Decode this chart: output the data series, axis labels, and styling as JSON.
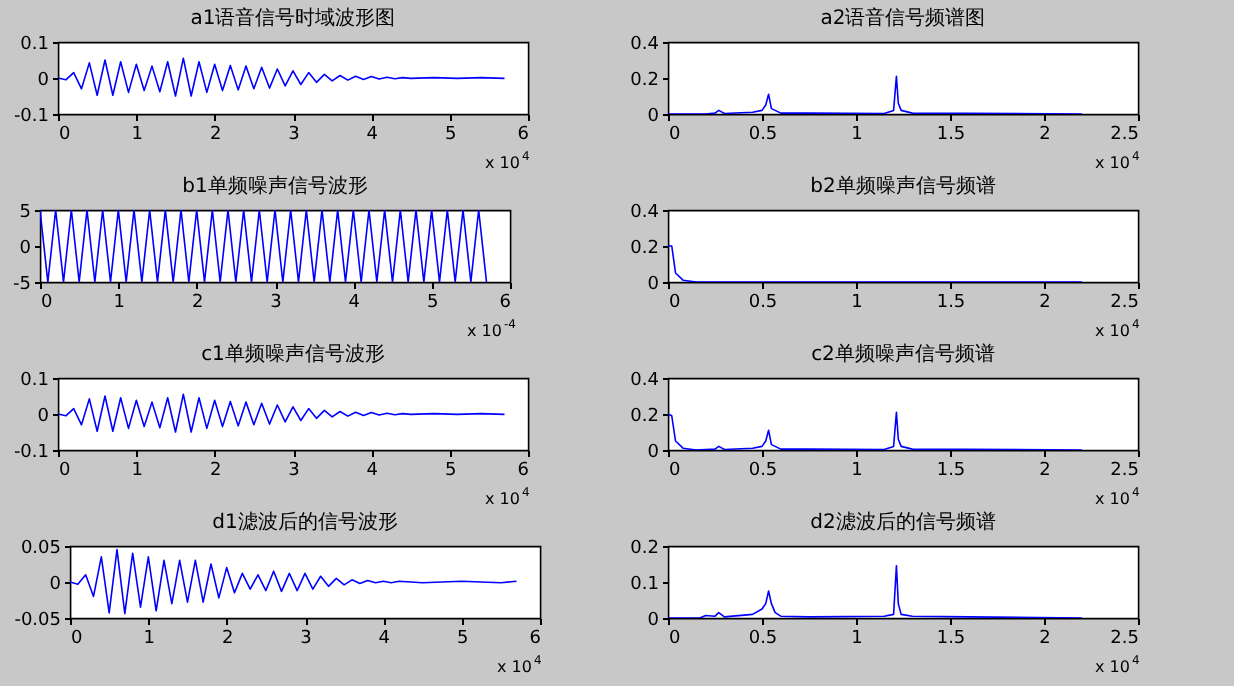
{
  "chart_data": [
    {
      "type": "line",
      "title": "a1语音信号时域波形图",
      "xlim": [
        0,
        6
      ],
      "xticks": [
        0,
        1,
        2,
        3,
        4,
        5,
        6
      ],
      "ylim": [
        -0.1,
        0.1
      ],
      "yticks": [
        -0.1,
        0,
        0.1
      ],
      "annotations": [
        "x 10$^{4}$"
      ],
      "series": [
        {
          "color": "#0000ff",
          "x": [
            0,
            0.1,
            0.2,
            0.3,
            0.4,
            0.5,
            0.6,
            0.7,
            0.8,
            0.9,
            1.0,
            1.1,
            1.2,
            1.3,
            1.4,
            1.5,
            1.6,
            1.7,
            1.8,
            1.9,
            2.0,
            2.1,
            2.2,
            2.3,
            2.4,
            2.5,
            2.6,
            2.7,
            2.8,
            2.9,
            3.0,
            3.1,
            3.2,
            3.3,
            3.4,
            3.5,
            3.6,
            3.7,
            3.8,
            3.9,
            4.0,
            4.1,
            4.2,
            4.3,
            4.4,
            4.5,
            4.8,
            5.1,
            5.4,
            5.7
          ],
          "values": [
            0,
            -0.005,
            0.015,
            -0.03,
            0.042,
            -0.048,
            0.05,
            -0.048,
            0.045,
            -0.04,
            0.038,
            -0.035,
            0.033,
            -0.038,
            0.045,
            -0.05,
            0.055,
            -0.05,
            0.045,
            -0.04,
            0.038,
            -0.035,
            0.035,
            -0.033,
            0.033,
            -0.03,
            0.03,
            -0.028,
            0.025,
            -0.022,
            0.02,
            -0.018,
            0.015,
            -0.012,
            0.01,
            -0.008,
            0.007,
            -0.006,
            0.005,
            -0.004,
            0.004,
            -0.003,
            0.002,
            -0.002,
            0.001,
            -0.001,
            0.001,
            -0.001,
            0.001,
            -0.001
          ]
        }
      ]
    },
    {
      "type": "line",
      "title": "a2语音信号频谱图",
      "xlim": [
        0,
        2.5
      ],
      "xticks": [
        0,
        0.5,
        1,
        1.5,
        2,
        2.5
      ],
      "ylim": [
        0,
        0.4
      ],
      "yticks": [
        0,
        0.2,
        0.4
      ],
      "annotations": [
        "x 10$^{4}$"
      ],
      "series": [
        {
          "color": "#0000ff",
          "x": [
            0,
            0.2,
            0.25,
            0.27,
            0.3,
            0.45,
            0.5,
            0.52,
            0.535,
            0.55,
            0.57,
            0.6,
            0.75,
            1.15,
            1.2,
            1.215,
            1.225,
            1.24,
            1.3,
            2.2
          ],
          "values": [
            0,
            0,
            0.005,
            0.02,
            0.003,
            0.01,
            0.02,
            0.05,
            0.11,
            0.03,
            0.02,
            0.005,
            0.005,
            0.003,
            0.02,
            0.21,
            0.06,
            0.02,
            0.005,
            0
          ]
        }
      ]
    },
    {
      "type": "line",
      "title": "b1单频噪声信号波形",
      "xlim": [
        0,
        6
      ],
      "xticks": [
        0,
        1,
        2,
        3,
        4,
        5,
        6
      ],
      "ylim": [
        -5,
        5
      ],
      "yticks": [
        -5,
        0,
        5
      ],
      "annotations": [
        "x 10$^{-4}$"
      ],
      "series": [
        {
          "color": "#0000ff",
          "x": [
            0,
            0.1,
            0.2,
            0.3,
            0.4,
            0.5,
            0.6,
            0.7,
            0.8,
            0.9,
            1.0,
            1.1,
            1.2,
            1.3,
            1.4,
            1.5,
            1.6,
            1.7,
            1.8,
            1.9,
            2.0,
            2.1,
            2.2,
            2.3,
            2.4,
            2.5,
            2.6,
            2.7,
            2.8,
            2.9,
            3.0,
            3.1,
            3.2,
            3.3,
            3.4,
            3.5,
            3.6,
            3.7,
            3.8,
            3.9,
            4.0,
            4.1,
            4.2,
            4.3,
            4.4,
            4.5,
            4.6,
            4.7,
            4.8,
            4.9,
            5.0,
            5.1,
            5.2,
            5.3,
            5.4,
            5.5,
            5.6,
            5.7
          ],
          "values": [
            5,
            -5,
            5,
            -5,
            5,
            -5,
            5,
            -5,
            5,
            -5,
            5,
            -5,
            5,
            -5,
            5,
            -5,
            5,
            -5,
            5,
            -5,
            5,
            -5,
            5,
            -5,
            5,
            -5,
            5,
            -5,
            5,
            -5,
            5,
            -5,
            5,
            -5,
            5,
            -5,
            5,
            -5,
            5,
            -5,
            5,
            -5,
            5,
            -5,
            5,
            -5,
            5,
            -5,
            5,
            -5,
            5,
            -5,
            5,
            -5,
            5,
            -5,
            5,
            -5
          ]
        }
      ]
    },
    {
      "type": "line",
      "title": "b2单频噪声信号频谱",
      "xlim": [
        0,
        2.5
      ],
      "xticks": [
        0,
        0.5,
        1,
        1.5,
        2,
        2.5
      ],
      "ylim": [
        0,
        0.4
      ],
      "yticks": [
        0,
        0.2,
        0.4
      ],
      "annotations": [
        "x 10$^{4}$"
      ],
      "series": [
        {
          "color": "#0000ff",
          "x": [
            0,
            0.01,
            0.02,
            0.04,
            0.08,
            0.15,
            2.2
          ],
          "values": [
            0.2,
            0.2,
            0.2,
            0.05,
            0.01,
            0,
            0
          ]
        }
      ]
    },
    {
      "type": "line",
      "title": "c1单频噪声信号波形",
      "xlim": [
        0,
        6
      ],
      "xticks": [
        0,
        1,
        2,
        3,
        4,
        5,
        6
      ],
      "ylim": [
        -0.1,
        0.1
      ],
      "yticks": [
        -0.1,
        0,
        0.1
      ],
      "annotations": [
        "x 10$^{4}$"
      ],
      "series": [
        {
          "color": "#0000ff",
          "x": [
            0,
            0.1,
            0.2,
            0.3,
            0.4,
            0.5,
            0.6,
            0.7,
            0.8,
            0.9,
            1.0,
            1.1,
            1.2,
            1.3,
            1.4,
            1.5,
            1.6,
            1.7,
            1.8,
            1.9,
            2.0,
            2.1,
            2.2,
            2.3,
            2.4,
            2.5,
            2.6,
            2.7,
            2.8,
            2.9,
            3.0,
            3.1,
            3.2,
            3.3,
            3.4,
            3.5,
            3.6,
            3.7,
            3.8,
            3.9,
            4.0,
            4.1,
            4.2,
            4.3,
            4.4,
            4.5,
            4.8,
            5.1,
            5.4,
            5.7
          ],
          "values": [
            0,
            -0.005,
            0.015,
            -0.03,
            0.042,
            -0.048,
            0.05,
            -0.048,
            0.045,
            -0.04,
            0.038,
            -0.035,
            0.033,
            -0.038,
            0.045,
            -0.05,
            0.055,
            -0.05,
            0.045,
            -0.04,
            0.038,
            -0.035,
            0.035,
            -0.033,
            0.033,
            -0.03,
            0.03,
            -0.028,
            0.025,
            -0.022,
            0.02,
            -0.018,
            0.015,
            -0.012,
            0.01,
            -0.008,
            0.007,
            -0.006,
            0.005,
            -0.004,
            0.004,
            -0.003,
            0.002,
            -0.002,
            0.001,
            -0.001,
            0.001,
            -0.001,
            0.001,
            -0.001
          ]
        }
      ]
    },
    {
      "type": "line",
      "title": "c2单频噪声信号频谱",
      "xlim": [
        0,
        2.5
      ],
      "xticks": [
        0,
        0.5,
        1,
        1.5,
        2,
        2.5
      ],
      "ylim": [
        0,
        0.4
      ],
      "yticks": [
        0,
        0.2,
        0.4
      ],
      "annotations": [
        "x 10$^{4}$"
      ],
      "series": [
        {
          "color": "#0000ff",
          "x": [
            0,
            0.02,
            0.04,
            0.08,
            0.15,
            0.25,
            0.27,
            0.3,
            0.45,
            0.5,
            0.52,
            0.535,
            0.55,
            0.57,
            0.6,
            0.75,
            1.15,
            1.2,
            1.215,
            1.225,
            1.24,
            1.3,
            2.2
          ],
          "values": [
            0.2,
            0.19,
            0.05,
            0.01,
            0,
            0.005,
            0.02,
            0.003,
            0.01,
            0.02,
            0.05,
            0.11,
            0.03,
            0.02,
            0.005,
            0.005,
            0.003,
            0.02,
            0.21,
            0.06,
            0.02,
            0.005,
            0
          ]
        }
      ]
    },
    {
      "type": "line",
      "title": "d1滤波后的信号波形",
      "xlim": [
        0,
        6
      ],
      "xticks": [
        0,
        1,
        2,
        3,
        4,
        5,
        6
      ],
      "ylim": [
        -0.05,
        0.05
      ],
      "yticks": [
        -0.05,
        0,
        0.05
      ],
      "annotations": [
        "x 10$^{4}$"
      ],
      "series": [
        {
          "color": "#0000ff",
          "x": [
            0,
            0.1,
            0.2,
            0.3,
            0.4,
            0.5,
            0.6,
            0.7,
            0.8,
            0.9,
            1.0,
            1.1,
            1.2,
            1.3,
            1.4,
            1.5,
            1.6,
            1.7,
            1.8,
            1.9,
            2.0,
            2.1,
            2.2,
            2.3,
            2.4,
            2.5,
            2.6,
            2.7,
            2.8,
            2.9,
            3.0,
            3.1,
            3.2,
            3.3,
            3.4,
            3.5,
            3.6,
            3.7,
            3.8,
            3.9,
            4.0,
            4.1,
            4.2,
            4.5,
            5.0,
            5.5,
            5.7
          ],
          "values": [
            0,
            -0.003,
            0.01,
            -0.02,
            0.035,
            -0.043,
            0.045,
            -0.044,
            0.04,
            -0.035,
            0.035,
            -0.04,
            0.03,
            -0.03,
            0.03,
            -0.028,
            0.03,
            -0.028,
            0.025,
            -0.022,
            0.02,
            -0.015,
            0.012,
            -0.01,
            0.01,
            -0.012,
            0.015,
            -0.013,
            0.012,
            -0.012,
            0.012,
            -0.01,
            0.008,
            -0.006,
            0.005,
            -0.004,
            0.003,
            -0.002,
            0.002,
            -0.001,
            0.001,
            -0.001,
            0.001,
            -0.001,
            0.001,
            -0.001,
            0.001
          ]
        }
      ]
    },
    {
      "type": "line",
      "title": "d2滤波后的信号频谱",
      "xlim": [
        0,
        2.5
      ],
      "xticks": [
        0,
        0.5,
        1,
        1.5,
        2,
        2.5
      ],
      "ylim": [
        0,
        0.2
      ],
      "yticks": [
        0,
        0.1,
        0.2
      ],
      "annotations": [
        "x 10$^{4}$"
      ],
      "series": [
        {
          "color": "#0000ff",
          "x": [
            0,
            0.17,
            0.2,
            0.25,
            0.27,
            0.3,
            0.45,
            0.5,
            0.52,
            0.535,
            0.55,
            0.57,
            0.6,
            0.75,
            1.15,
            1.2,
            1.215,
            1.225,
            1.24,
            1.3,
            1.6,
            2.2
          ],
          "values": [
            0,
            0,
            0.007,
            0.005,
            0.015,
            0.003,
            0.01,
            0.025,
            0.04,
            0.075,
            0.04,
            0.015,
            0.005,
            0.003,
            0.005,
            0.01,
            0.145,
            0.04,
            0.01,
            0.005,
            0.003,
            0
          ]
        }
      ]
    }
  ]
}
